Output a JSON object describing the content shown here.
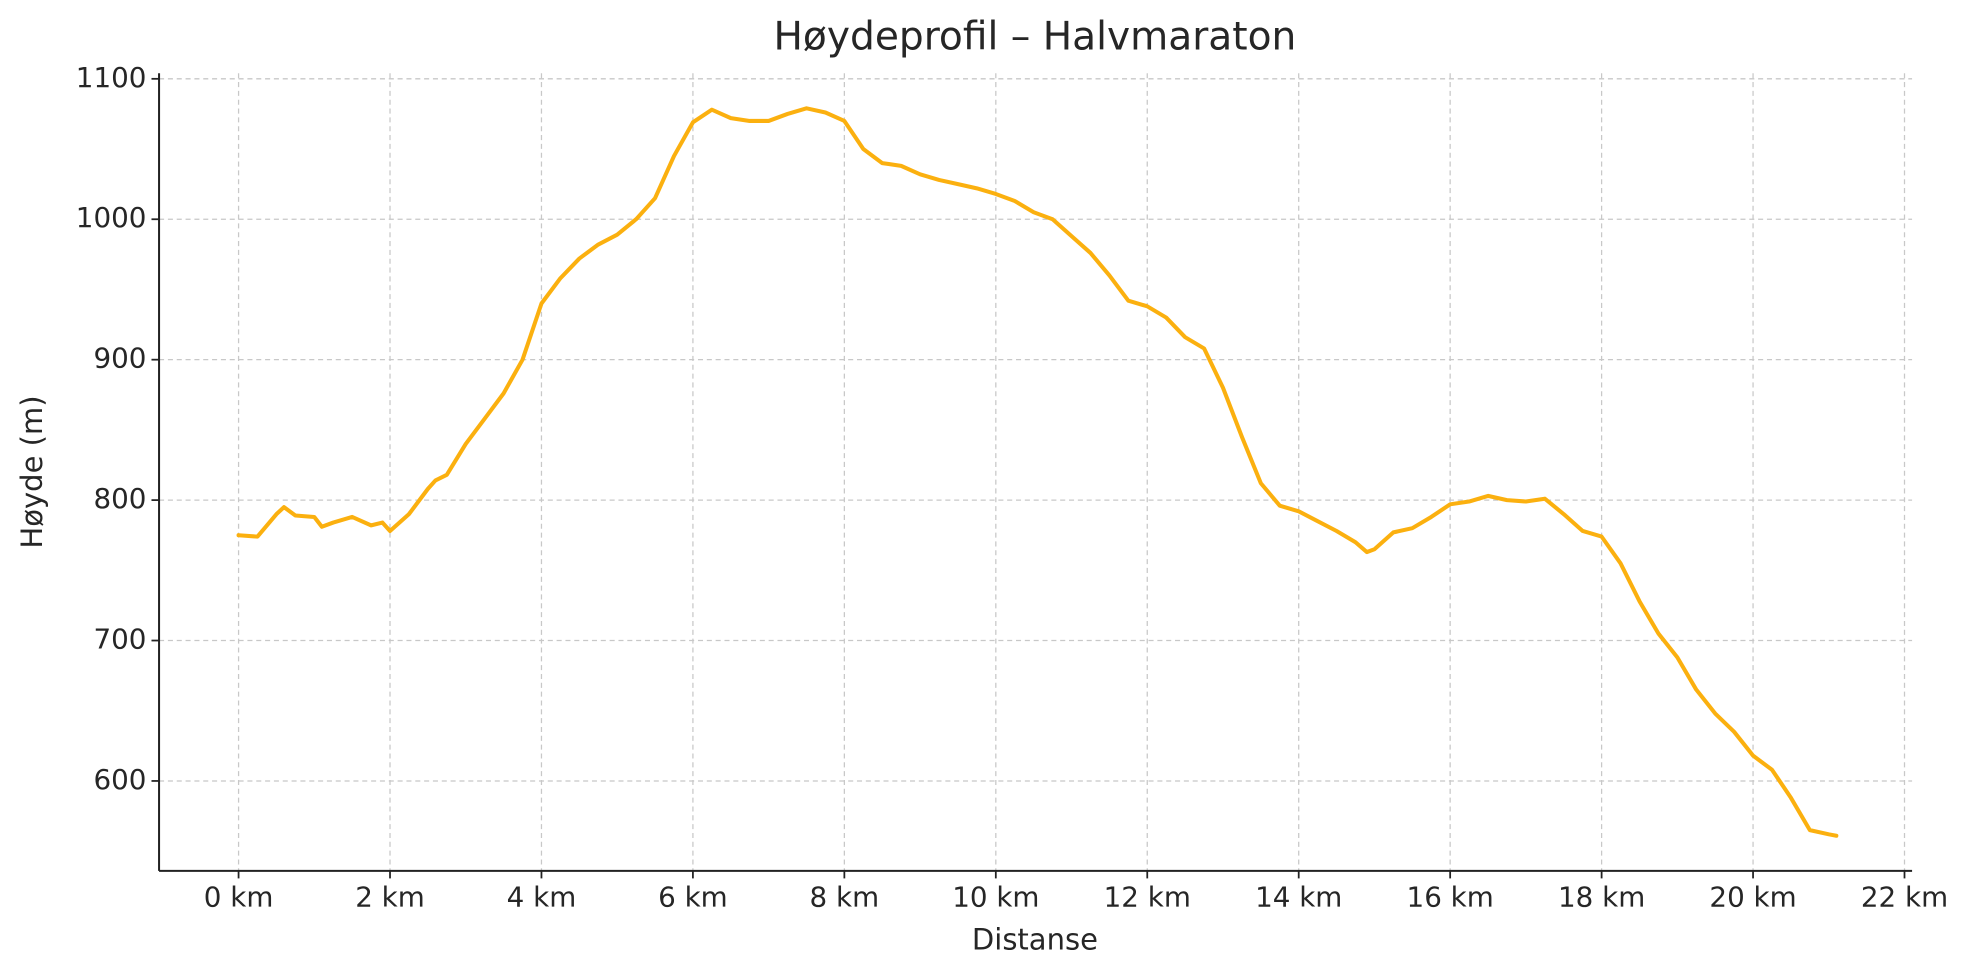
{
  "chart_data": {
    "type": "line",
    "title": "Høydeprofil – Halvmaraton",
    "x_label": "Distanse",
    "y_label": "Høyde (m)",
    "x": [
      0,
      0.25,
      0.5,
      0.6,
      0.75,
      1.0,
      1.1,
      1.25,
      1.5,
      1.75,
      1.9,
      2.0,
      2.25,
      2.5,
      2.6,
      2.75,
      3.0,
      3.25,
      3.5,
      3.75,
      4.0,
      4.25,
      4.5,
      4.75,
      5.0,
      5.25,
      5.5,
      5.75,
      6.0,
      6.25,
      6.5,
      6.75,
      7.0,
      7.25,
      7.5,
      7.75,
      8.0,
      8.25,
      8.5,
      8.75,
      9.0,
      9.25,
      9.5,
      9.75,
      10.0,
      10.25,
      10.5,
      10.75,
      11.0,
      11.25,
      11.5,
      11.75,
      12.0,
      12.25,
      12.5,
      12.75,
      13.0,
      13.25,
      13.5,
      13.75,
      14.0,
      14.25,
      14.5,
      14.75,
      14.9,
      15.0,
      15.25,
      15.5,
      15.75,
      16.0,
      16.25,
      16.5,
      16.75,
      17.0,
      17.25,
      17.5,
      17.75,
      18.0,
      18.25,
      18.5,
      18.75,
      19.0,
      19.25,
      19.5,
      19.75,
      20.0,
      20.25,
      20.5,
      20.75,
      21.0,
      21.1
    ],
    "series": [
      {
        "name": "Høyde",
        "color": "#fbb00f",
        "values": [
          775,
          774,
          790,
          795,
          789,
          788,
          781,
          784,
          788,
          782,
          784,
          778,
          790,
          808,
          814,
          818,
          840,
          858,
          876,
          900,
          940,
          958,
          972,
          982,
          989,
          1000,
          1015,
          1045,
          1069,
          1078,
          1072,
          1070,
          1070,
          1075,
          1079,
          1076,
          1070,
          1050,
          1040,
          1038,
          1032,
          1028,
          1025,
          1022,
          1018,
          1013,
          1005,
          1000,
          988,
          976,
          960,
          942,
          938,
          930,
          916,
          908,
          880,
          845,
          812,
          796,
          792,
          785,
          778,
          770,
          763,
          765,
          777,
          780,
          788,
          797,
          799,
          803,
          800,
          799,
          801,
          790,
          778,
          774,
          755,
          728,
          705,
          688,
          665,
          648,
          635,
          618,
          608,
          588,
          565,
          562,
          561
        ]
      }
    ],
    "xlim": [
      -1.05,
      22.1
    ],
    "ylim": [
      536,
      1104
    ],
    "xticks": [
      {
        "value": 0,
        "label": "0 km"
      },
      {
        "value": 2,
        "label": "2 km"
      },
      {
        "value": 4,
        "label": "4 km"
      },
      {
        "value": 6,
        "label": "6 km"
      },
      {
        "value": 8,
        "label": "8 km"
      },
      {
        "value": 10,
        "label": "10 km"
      },
      {
        "value": 12,
        "label": "12 km"
      },
      {
        "value": 14,
        "label": "14 km"
      },
      {
        "value": 16,
        "label": "16 km"
      },
      {
        "value": 18,
        "label": "18 km"
      },
      {
        "value": 20,
        "label": "20 km"
      },
      {
        "value": 22,
        "label": "22 km"
      }
    ],
    "yticks": [
      600,
      700,
      800,
      900,
      1000,
      1100
    ],
    "grid": true
  }
}
